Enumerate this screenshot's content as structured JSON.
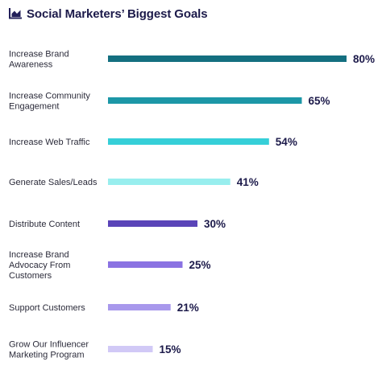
{
  "icon": "bar-chart-icon",
  "colors": {
    "title": "#1c1a4a",
    "icon": "#23205a",
    "label": "#2b2b3a"
  },
  "chart_data": {
    "type": "bar",
    "orientation": "horizontal",
    "title": "Social Marketers’ Biggest Goals",
    "value_suffix": "%",
    "xlim": [
      0,
      100
    ],
    "grid": false,
    "categories": [
      "Increase Brand Awareness",
      "Increase Community Engagement",
      "Increase Web Traffic",
      "Generate Sales/Leads",
      "Distribute Content",
      "Increase Brand Advocacy From Customers",
      "Support Customers",
      "Grow Our Influencer Marketing Program"
    ],
    "values": [
      80,
      65,
      54,
      41,
      30,
      25,
      21,
      15
    ],
    "bar_colors": [
      "#146f80",
      "#1c97a7",
      "#36cfd8",
      "#98eeee",
      "#5a44b8",
      "#8a72e2",
      "#a898ec",
      "#d1c9f6"
    ]
  }
}
